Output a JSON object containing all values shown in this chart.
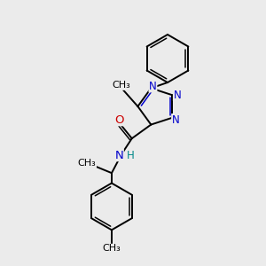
{
  "bg_color": "#ebebeb",
  "bond_color": "#000000",
  "N_color": "#0000cc",
  "O_color": "#cc0000",
  "H_color": "#008888",
  "figsize": [
    3.0,
    3.0
  ],
  "dpi": 100,
  "xlim": [
    0,
    10
  ],
  "ylim": [
    0,
    10
  ]
}
